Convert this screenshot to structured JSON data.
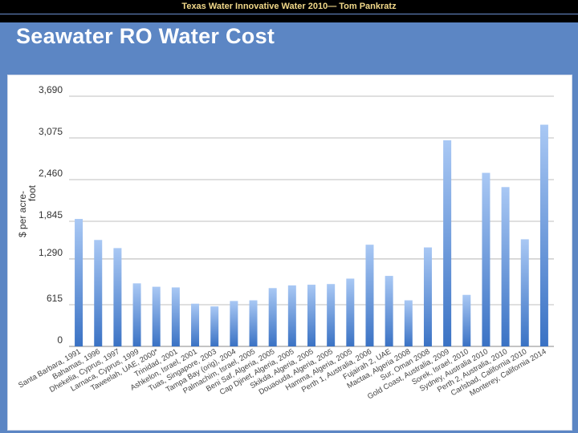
{
  "header": {
    "caption": "Texas Water Innovative Water 2010— Tom Pankratz"
  },
  "slide": {
    "title": "Seawater RO Water Cost"
  },
  "colors": {
    "background": "#5c86c4",
    "bar_top": "#a9c8f4",
    "bar_bottom": "#3a72c4",
    "grid": "#aaaaaa"
  },
  "chart_data": {
    "type": "bar",
    "title": "Seawater RO Water Cost",
    "xlabel": "",
    "ylabel": "$ per acre-foot",
    "ylabel_lines": [
      "$ per acre-",
      "foot"
    ],
    "ylim": [
      0,
      3690
    ],
    "yticks": [
      {
        "value": 0,
        "label": "0"
      },
      {
        "value": 615,
        "label": "615"
      },
      {
        "value": 1290,
        "label": "1,290"
      },
      {
        "value": 1845,
        "label": "1,845"
      },
      {
        "value": 2460,
        "label": "2,460"
      },
      {
        "value": 3075,
        "label": "3,075"
      },
      {
        "value": 3690,
        "label": "3,690"
      }
    ],
    "grid": true,
    "categories": [
      "Santa Barbara, 1991",
      "Bahamas, 1996",
      "Dhekelia, Cyprus, 1997",
      "Larnaca, Cyprus, 1999",
      "Taweelah, UAE, 2000*",
      "Trinidad, 2001",
      "Ashkelon, Israel, 2001",
      "Tuas, Singapore, 2003",
      "Tampa Bay (orig), 2004",
      "Palmachim, Israel, 2005",
      "Beni Saf, Algeria, 2005",
      "Cap Djinet, Algeria, 2005",
      "Skikda, Algeria, 2005",
      "Douaouda, Algeria, 2005",
      "Hamma, Algeria, 2005",
      "Perth 1, Australia, 2006",
      "Fujairah 2, UAE",
      "Mactaa, Algeria 2008",
      "Sur, Oman 2008",
      "Gold Coast, Australia, 2009",
      "Sorek, Israel, 2010",
      "Sydney, Australia 2010",
      "Perth 2, Australia, 2010",
      "Carlsbad, California 2010",
      "Monterey, California 2014"
    ],
    "values": [
      1880,
      1570,
      1450,
      930,
      880,
      870,
      630,
      590,
      670,
      680,
      860,
      900,
      910,
      920,
      1000,
      1500,
      1040,
      680,
      1460,
      3040,
      760,
      2560,
      2350,
      1580,
      3270
    ]
  }
}
